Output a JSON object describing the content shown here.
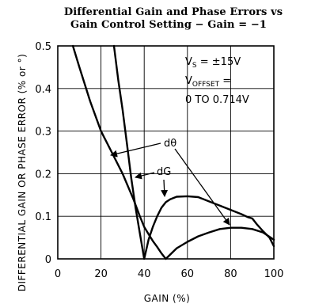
{
  "chart_data": {
    "type": "line",
    "title_line1": "Differential Gain and Phase Errors vs",
    "title_line2": "Gain Control Setting − Gain = −1",
    "xlabel": "GAIN (%)",
    "ylabel": "DIFFERENTIAL GAIN OR PHASE ERROR (% or °)",
    "xlim": [
      0,
      100
    ],
    "ylim": [
      0,
      0.5
    ],
    "x_ticks": [
      "0",
      "20",
      "40",
      "60",
      "80",
      "100"
    ],
    "y_ticks": [
      "0",
      "0.1",
      "0.2",
      "0.3",
      "0.4",
      "0.5"
    ],
    "grid": true,
    "conditions": {
      "line1": "V",
      "line1_sub": "S",
      "line1_rest": " = ±15V",
      "line2": "V",
      "line2_sub": "OFFSET",
      "line2_rest": " =",
      "line3": "0 TO 0.714V"
    },
    "series": [
      {
        "name": "dθ",
        "x": [
          7,
          10,
          15,
          20,
          25,
          30,
          35,
          38,
          40,
          42,
          44,
          46,
          48,
          50,
          55,
          60,
          65,
          70,
          75,
          80,
          85,
          90,
          95,
          100
        ],
        "y": [
          0.5,
          0.45,
          0.37,
          0.3,
          0.25,
          0.2,
          0.14,
          0.1,
          0.075,
          0.058,
          0.042,
          0.028,
          0.013,
          0.0,
          0.025,
          0.04,
          0.053,
          0.062,
          0.07,
          0.073,
          0.073,
          0.07,
          0.062,
          0.045
        ]
      },
      {
        "name": "dG",
        "x": [
          26,
          28,
          30,
          32,
          34,
          36,
          38,
          40,
          42,
          44,
          46,
          48,
          50,
          52,
          55,
          60,
          65,
          70,
          75,
          80,
          85,
          88,
          90,
          92,
          95,
          98,
          100
        ],
        "y": [
          0.5,
          0.42,
          0.35,
          0.27,
          0.19,
          0.12,
          0.06,
          0.0,
          0.045,
          0.075,
          0.1,
          0.12,
          0.133,
          0.14,
          0.146,
          0.147,
          0.145,
          0.135,
          0.125,
          0.115,
          0.105,
          0.098,
          0.095,
          0.082,
          0.065,
          0.05,
          0.03
        ]
      }
    ],
    "annotations": [
      {
        "text": "dθ"
      },
      {
        "text": "dG"
      }
    ]
  }
}
